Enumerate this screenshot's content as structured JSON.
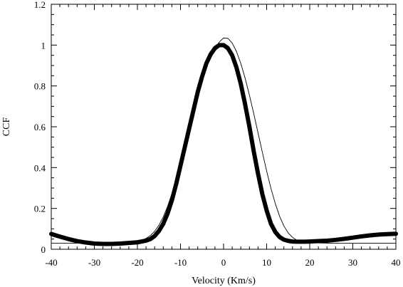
{
  "chart_data": {
    "type": "line",
    "xlabel": "Velocity (Km/s)",
    "ylabel": "CCF",
    "xlim": [
      -40,
      40
    ],
    "ylim": [
      0,
      1.2
    ],
    "x_ticks": [
      -40,
      -30,
      -20,
      -10,
      0,
      10,
      20,
      30,
      40
    ],
    "y_ticks": [
      0,
      0.2,
      0.4,
      0.6,
      0.8,
      1,
      1.2
    ],
    "grid": false,
    "series": [
      {
        "style": "thick",
        "x": [
          -40,
          -38,
          -36,
          -34,
          -32,
          -30,
          -28,
          -26,
          -24,
          -22,
          -20,
          -18,
          -17,
          -16,
          -15,
          -14,
          -13,
          -12,
          -11,
          -10,
          -9,
          -8,
          -7,
          -6,
          -5,
          -4,
          -3,
          -2,
          -1,
          0,
          1,
          2,
          3,
          4,
          5,
          6,
          7,
          8,
          9,
          10,
          11,
          12,
          13,
          14,
          15,
          16,
          17,
          18,
          19,
          20,
          22,
          24,
          26,
          28,
          30,
          32,
          34,
          36,
          38,
          40
        ],
        "y": [
          0.075,
          0.062,
          0.05,
          0.04,
          0.033,
          0.028,
          0.026,
          0.026,
          0.028,
          0.031,
          0.034,
          0.042,
          0.05,
          0.065,
          0.09,
          0.125,
          0.175,
          0.24,
          0.32,
          0.41,
          0.5,
          0.59,
          0.68,
          0.77,
          0.845,
          0.91,
          0.955,
          0.985,
          1.0,
          1.0,
          0.985,
          0.95,
          0.89,
          0.81,
          0.71,
          0.6,
          0.48,
          0.37,
          0.27,
          0.19,
          0.125,
          0.085,
          0.06,
          0.047,
          0.041,
          0.038,
          0.037,
          0.037,
          0.037,
          0.038,
          0.04,
          0.042,
          0.046,
          0.051,
          0.057,
          0.063,
          0.068,
          0.072,
          0.074,
          0.076
        ]
      },
      {
        "style": "thin-fit",
        "x": [
          -40,
          -36,
          -32,
          -28,
          -24,
          -22,
          -20,
          -19,
          -18,
          -17,
          -16,
          -15,
          -14,
          -13,
          -12,
          -11,
          -10,
          -9,
          -8,
          -7,
          -6,
          -5,
          -4,
          -3,
          -2,
          -1,
          0,
          1,
          2,
          3,
          4,
          5,
          6,
          7,
          8,
          9,
          10,
          11,
          12,
          13,
          14,
          15,
          16,
          17,
          18,
          19,
          20,
          24,
          28,
          32,
          36,
          40
        ],
        "y": [
          0.03,
          0.03,
          0.03,
          0.03,
          0.031,
          0.033,
          0.038,
          0.044,
          0.053,
          0.067,
          0.088,
          0.118,
          0.158,
          0.21,
          0.272,
          0.344,
          0.423,
          0.507,
          0.593,
          0.677,
          0.756,
          0.827,
          0.889,
          0.94,
          0.98,
          1.015,
          1.035,
          1.033,
          1.01,
          0.968,
          0.91,
          0.838,
          0.755,
          0.665,
          0.57,
          0.475,
          0.383,
          0.298,
          0.224,
          0.162,
          0.114,
          0.08,
          0.058,
          0.045,
          0.038,
          0.034,
          0.032,
          0.03,
          0.03,
          0.03,
          0.03,
          0.03
        ]
      }
    ]
  }
}
